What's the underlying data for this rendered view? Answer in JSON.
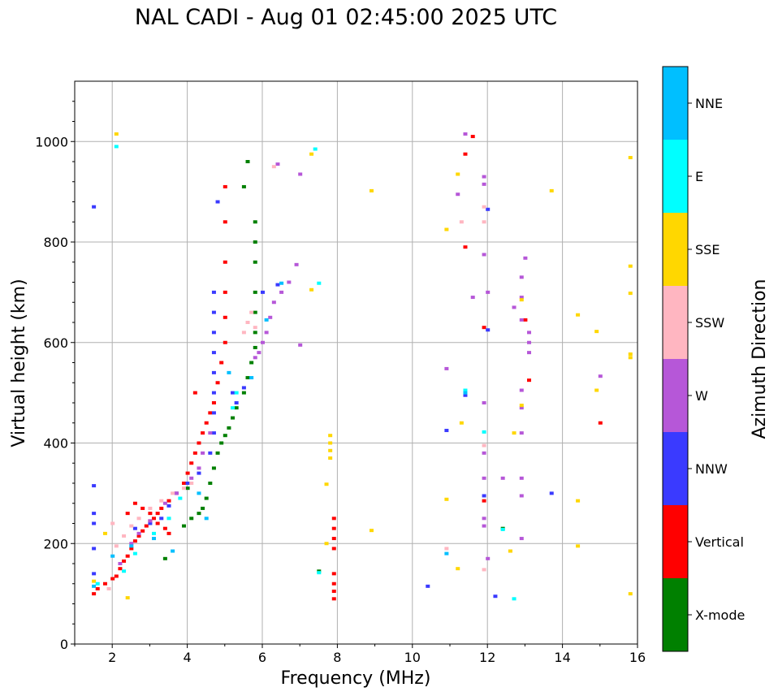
{
  "chart_data": {
    "type": "scatter",
    "title": "NAL CADI - Aug 01 02:45:00 2025 UTC",
    "xlabel": "Frequency (MHz)",
    "ylabel": "Virtual height (km)",
    "xlim": [
      1,
      16
    ],
    "ylim": [
      0,
      1120
    ],
    "xticks": [
      "2",
      "4",
      "6",
      "8",
      "10",
      "12",
      "14",
      "16"
    ],
    "yticks": [
      "0",
      "200",
      "400",
      "600",
      "800",
      "1000"
    ],
    "grid": true,
    "colorbar": {
      "label": "Azimuth Direction",
      "categories": [
        {
          "name": "X-mode",
          "color": "#008000"
        },
        {
          "name": "Vertical",
          "color": "#ff0000"
        },
        {
          "name": "NNW",
          "color": "#3a3aff"
        },
        {
          "name": "W",
          "color": "#b657d8"
        },
        {
          "name": "SSW",
          "color": "#ffb6c1"
        },
        {
          "name": "SSE",
          "color": "#ffd700"
        },
        {
          "name": "E",
          "color": "#00ffff"
        },
        {
          "name": "NNE",
          "color": "#00bfff"
        }
      ]
    },
    "series": [
      {
        "name": "Vertical",
        "points": [
          [
            1.5,
            100
          ],
          [
            1.6,
            110
          ],
          [
            1.8,
            120
          ],
          [
            2.0,
            130
          ],
          [
            2.1,
            135
          ],
          [
            2.2,
            150
          ],
          [
            2.3,
            165
          ],
          [
            2.4,
            175
          ],
          [
            2.5,
            190
          ],
          [
            2.6,
            205
          ],
          [
            2.7,
            215
          ],
          [
            2.8,
            225
          ],
          [
            2.9,
            235
          ],
          [
            3.0,
            245
          ],
          [
            3.1,
            250
          ],
          [
            3.2,
            260
          ],
          [
            3.3,
            270
          ],
          [
            3.5,
            285
          ],
          [
            3.7,
            300
          ],
          [
            3.9,
            320
          ],
          [
            4.0,
            340
          ],
          [
            4.1,
            360
          ],
          [
            4.2,
            380
          ],
          [
            4.3,
            400
          ],
          [
            4.4,
            420
          ],
          [
            4.5,
            440
          ],
          [
            4.6,
            460
          ],
          [
            4.7,
            480
          ],
          [
            4.8,
            520
          ],
          [
            4.9,
            560
          ],
          [
            5.0,
            600
          ],
          [
            5.0,
            650
          ],
          [
            5.0,
            700
          ],
          [
            5.0,
            760
          ],
          [
            5.0,
            840
          ],
          [
            5.0,
            910
          ],
          [
            2.6,
            280
          ],
          [
            2.8,
            270
          ],
          [
            3.0,
            260
          ],
          [
            3.2,
            240
          ],
          [
            3.4,
            230
          ],
          [
            2.4,
            260
          ],
          [
            7.9,
            90
          ],
          [
            7.9,
            105
          ],
          [
            7.9,
            120
          ],
          [
            7.9,
            140
          ],
          [
            7.9,
            190
          ],
          [
            7.9,
            210
          ],
          [
            7.9,
            230
          ],
          [
            7.9,
            250
          ],
          [
            11.4,
            975
          ],
          [
            11.6,
            1010
          ],
          [
            11.4,
            790
          ],
          [
            11.9,
            630
          ],
          [
            13.0,
            645
          ],
          [
            13.1,
            525
          ],
          [
            15.0,
            440
          ],
          [
            11.9,
            285
          ],
          [
            4.2,
            500
          ],
          [
            3.5,
            220
          ]
        ]
      },
      {
        "name": "X-mode",
        "points": [
          [
            3.4,
            170
          ],
          [
            3.9,
            235
          ],
          [
            4.1,
            250
          ],
          [
            4.4,
            270
          ],
          [
            4.5,
            290
          ],
          [
            4.6,
            320
          ],
          [
            4.7,
            350
          ],
          [
            4.8,
            380
          ],
          [
            4.9,
            400
          ],
          [
            5.0,
            415
          ],
          [
            5.1,
            430
          ],
          [
            5.2,
            450
          ],
          [
            5.3,
            470
          ],
          [
            5.5,
            500
          ],
          [
            5.6,
            530
          ],
          [
            5.7,
            560
          ],
          [
            5.8,
            590
          ],
          [
            5.8,
            620
          ],
          [
            5.8,
            660
          ],
          [
            5.8,
            700
          ],
          [
            5.8,
            760
          ],
          [
            5.8,
            800
          ],
          [
            5.8,
            840
          ],
          [
            5.5,
            910
          ],
          [
            5.6,
            960
          ],
          [
            4.3,
            260
          ],
          [
            4.0,
            310
          ],
          [
            12.4,
            230
          ],
          [
            7.5,
            145
          ]
        ]
      },
      {
        "name": "NNW",
        "points": [
          [
            1.5,
            140
          ],
          [
            1.5,
            190
          ],
          [
            1.5,
            240
          ],
          [
            1.5,
            260
          ],
          [
            1.5,
            315
          ],
          [
            1.5,
            870
          ],
          [
            2.6,
            230
          ],
          [
            3.0,
            240
          ],
          [
            3.3,
            250
          ],
          [
            3.5,
            275
          ],
          [
            3.7,
            300
          ],
          [
            4.0,
            320
          ],
          [
            4.3,
            340
          ],
          [
            4.6,
            380
          ],
          [
            4.7,
            420
          ],
          [
            4.7,
            460
          ],
          [
            4.7,
            500
          ],
          [
            4.7,
            540
          ],
          [
            4.7,
            580
          ],
          [
            4.7,
            620
          ],
          [
            4.7,
            660
          ],
          [
            4.7,
            700
          ],
          [
            4.8,
            880
          ],
          [
            5.3,
            480
          ],
          [
            5.5,
            510
          ],
          [
            5.2,
            500
          ],
          [
            6.4,
            715
          ],
          [
            6.0,
            700
          ],
          [
            10.9,
            425
          ],
          [
            11.9,
            295
          ],
          [
            12.0,
            625
          ],
          [
            12.0,
            865
          ],
          [
            12.2,
            95
          ],
          [
            13.7,
            300
          ],
          [
            11.4,
            495
          ],
          [
            10.4,
            115
          ]
        ]
      },
      {
        "name": "W",
        "points": [
          [
            2.2,
            160
          ],
          [
            2.5,
            200
          ],
          [
            2.7,
            220
          ],
          [
            3.0,
            245
          ],
          [
            3.4,
            280
          ],
          [
            3.7,
            300
          ],
          [
            4.1,
            330
          ],
          [
            4.3,
            350
          ],
          [
            4.4,
            380
          ],
          [
            4.6,
            420
          ],
          [
            5.8,
            570
          ],
          [
            5.9,
            580
          ],
          [
            6.0,
            600
          ],
          [
            6.1,
            620
          ],
          [
            6.2,
            650
          ],
          [
            6.3,
            680
          ],
          [
            6.5,
            700
          ],
          [
            6.7,
            720
          ],
          [
            6.9,
            755
          ],
          [
            6.4,
            955
          ],
          [
            7.0,
            935
          ],
          [
            7.0,
            595
          ],
          [
            10.9,
            548
          ],
          [
            11.9,
            480
          ],
          [
            11.9,
            380
          ],
          [
            11.9,
            330
          ],
          [
            11.9,
            250
          ],
          [
            11.9,
            235
          ],
          [
            11.9,
            775
          ],
          [
            11.9,
            930
          ],
          [
            11.9,
            915
          ],
          [
            12.0,
            700
          ],
          [
            12.4,
            330
          ],
          [
            12.7,
            670
          ],
          [
            12.9,
            730
          ],
          [
            12.9,
            690
          ],
          [
            12.9,
            645
          ],
          [
            12.9,
            505
          ],
          [
            12.9,
            470
          ],
          [
            12.9,
            420
          ],
          [
            12.9,
            330
          ],
          [
            12.9,
            295
          ],
          [
            12.9,
            210
          ],
          [
            13.0,
            768
          ],
          [
            13.1,
            620
          ],
          [
            13.1,
            600
          ],
          [
            13.1,
            580
          ],
          [
            15.0,
            533
          ],
          [
            11.2,
            895
          ],
          [
            11.4,
            1015
          ],
          [
            11.6,
            690
          ],
          [
            12.0,
            170
          ]
        ]
      },
      {
        "name": "SSW",
        "points": [
          [
            1.9,
            110
          ],
          [
            2.0,
            240
          ],
          [
            2.1,
            195
          ],
          [
            2.3,
            215
          ],
          [
            2.5,
            235
          ],
          [
            2.7,
            250
          ],
          [
            3.0,
            270
          ],
          [
            3.3,
            285
          ],
          [
            3.6,
            300
          ],
          [
            3.9,
            310
          ],
          [
            4.1,
            320
          ],
          [
            5.5,
            620
          ],
          [
            5.6,
            640
          ],
          [
            5.7,
            660
          ],
          [
            5.8,
            630
          ],
          [
            6.3,
            950
          ],
          [
            11.3,
            840
          ],
          [
            11.9,
            840
          ],
          [
            11.9,
            870
          ],
          [
            11.9,
            395
          ],
          [
            11.9,
            148
          ],
          [
            10.9,
            190
          ],
          [
            12.6,
            185
          ]
        ]
      },
      {
        "name": "SSE",
        "points": [
          [
            1.5,
            125
          ],
          [
            1.8,
            220
          ],
          [
            2.1,
            1015
          ],
          [
            2.4,
            92
          ],
          [
            7.8,
            370
          ],
          [
            7.8,
            385
          ],
          [
            7.8,
            400
          ],
          [
            7.8,
            415
          ],
          [
            7.7,
            200
          ],
          [
            7.7,
            318
          ],
          [
            7.3,
            705
          ],
          [
            7.3,
            975
          ],
          [
            8.9,
            902
          ],
          [
            8.9,
            226
          ],
          [
            10.9,
            825
          ],
          [
            10.9,
            288
          ],
          [
            11.2,
            935
          ],
          [
            11.2,
            150
          ],
          [
            11.3,
            440
          ],
          [
            12.7,
            420
          ],
          [
            12.6,
            185
          ],
          [
            12.9,
            685
          ],
          [
            12.9,
            475
          ],
          [
            13.7,
            902
          ],
          [
            14.4,
            285
          ],
          [
            14.4,
            195
          ],
          [
            14.4,
            655
          ],
          [
            14.9,
            622
          ],
          [
            14.9,
            505
          ],
          [
            15.8,
            968
          ],
          [
            15.8,
            752
          ],
          [
            15.8,
            698
          ],
          [
            15.8,
            577
          ],
          [
            15.8,
            570
          ],
          [
            15.8,
            100
          ]
        ]
      },
      {
        "name": "E",
        "points": [
          [
            1.6,
            120
          ],
          [
            2.1,
            990
          ],
          [
            2.3,
            145
          ],
          [
            2.6,
            180
          ],
          [
            3.1,
            220
          ],
          [
            3.5,
            250
          ],
          [
            3.8,
            290
          ],
          [
            5.2,
            470
          ],
          [
            5.3,
            500
          ],
          [
            7.4,
            985
          ],
          [
            7.5,
            718
          ],
          [
            7.5,
            142
          ],
          [
            11.4,
            505
          ],
          [
            11.9,
            422
          ],
          [
            12.4,
            228
          ],
          [
            12.7,
            90
          ]
        ]
      },
      {
        "name": "NNE",
        "points": [
          [
            1.5,
            115
          ],
          [
            2.0,
            175
          ],
          [
            2.5,
            195
          ],
          [
            3.1,
            210
          ],
          [
            3.6,
            185
          ],
          [
            4.5,
            250
          ],
          [
            4.3,
            300
          ],
          [
            5.1,
            540
          ],
          [
            5.7,
            530
          ],
          [
            6.1,
            645
          ],
          [
            6.5,
            718
          ],
          [
            10.9,
            180
          ],
          [
            11.4,
            500
          ]
        ]
      }
    ]
  }
}
